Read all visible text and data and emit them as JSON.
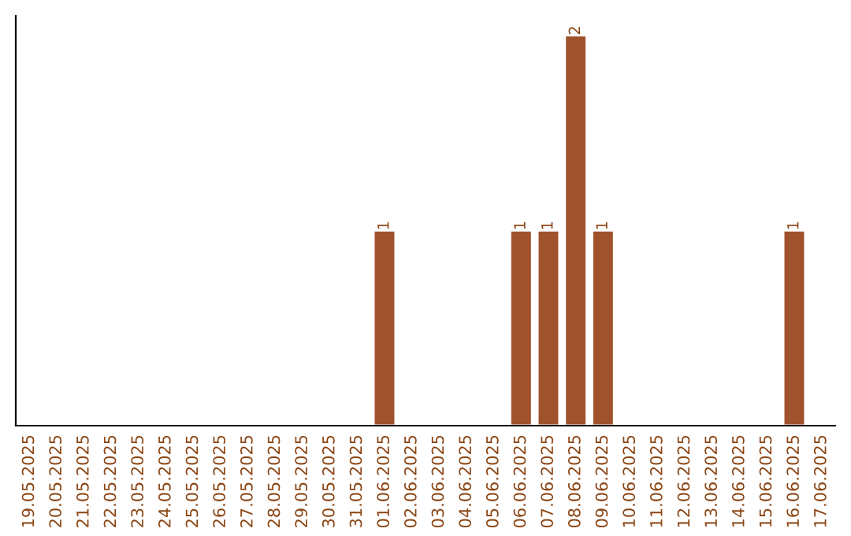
{
  "chart_data": {
    "type": "bar",
    "categories": [
      "19.05.2025",
      "20.05.2025",
      "21.05.2025",
      "22.05.2025",
      "23.05.2025",
      "24.05.2025",
      "25.05.2025",
      "26.05.2025",
      "27.05.2025",
      "28.05.2025",
      "29.05.2025",
      "30.05.2025",
      "31.05.2025",
      "01.06.2025",
      "02.06.2025",
      "03.06.2025",
      "04.06.2025",
      "05.06.2025",
      "06.06.2025",
      "07.06.2025",
      "08.06.2025",
      "09.06.2025",
      "10.06.2025",
      "11.06.2025",
      "12.06.2025",
      "13.06.2025",
      "14.06.2025",
      "15.06.2025",
      "16.06.2025",
      "17.06.2025"
    ],
    "values": [
      null,
      null,
      null,
      null,
      null,
      null,
      null,
      null,
      null,
      null,
      null,
      null,
      null,
      1,
      null,
      null,
      null,
      null,
      1,
      1,
      2,
      1,
      null,
      null,
      null,
      null,
      null,
      null,
      1,
      null
    ],
    "color": "#a0522d",
    "data_labels": true,
    "tick_labels": "x",
    "grid": false,
    "legend": false
  }
}
